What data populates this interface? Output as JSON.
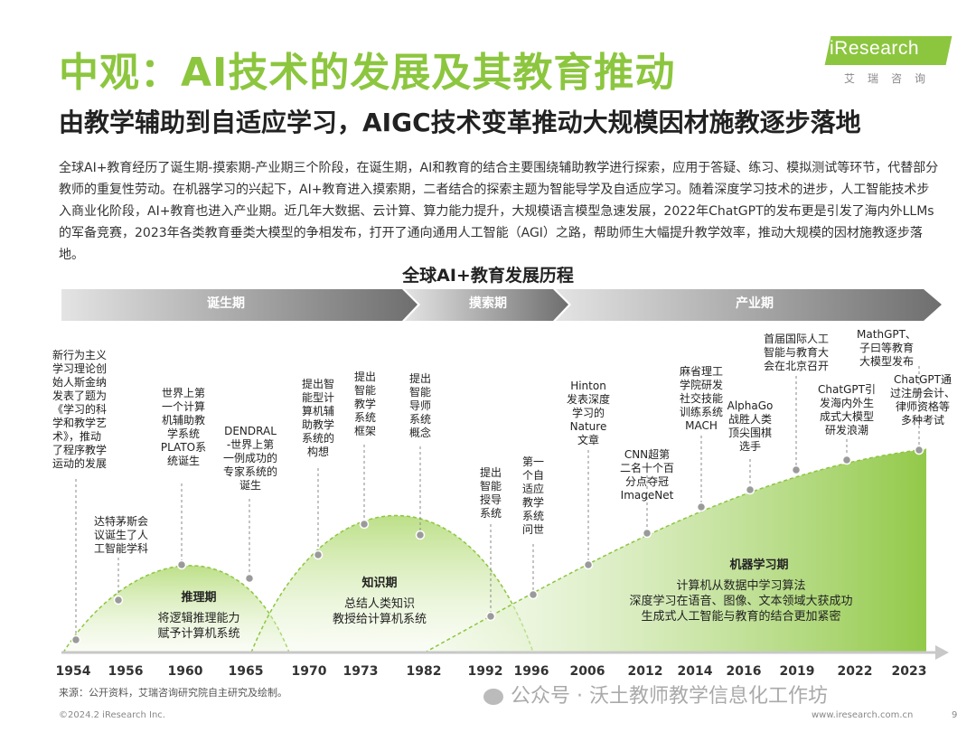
{
  "header": {
    "title": "中观：AI技术的发展及其教育推动",
    "subtitle": "由教学辅助到自适应学习，AIGC技术变革推动大规模因材施教逐步落地"
  },
  "logo": {
    "name": "iResearch",
    "sub": "艾瑞咨询",
    "color": "#8cc63f"
  },
  "intro": "全球AI+教育经历了诞生期-摸索期-产业期三个阶段，在诞生期，AI和教育的结合主要围绕辅助教学进行探索，应用于答疑、练习、模拟测试等环节，代替部分教师的重复性劳动。在机器学习的兴起下，AI+教育进入摸索期，二者结合的探索主题为智能导学及自适应学习。随着深度学习技术的进步，人工智能技术步入商业化阶段，AI+教育也进入产业期。近几年大数据、云计算、算力能力提升，大规模语言模型急速发展，2022年ChatGPT的发布更是引发了海内外LLMs的军备竞赛，2023年各类教育垂类大模型的争相发布，打开了通向通用人工智能（AGI）之路，帮助师生大幅提升教学效率，推动大规模的因材施教逐步落地。",
  "diagram": {
    "title": "全球AI+教育发展历程",
    "phases": [
      "诞生期",
      "摸索期",
      "产业期"
    ],
    "periods": [
      {
        "name": "推理期",
        "desc": [
          "将逻辑推理能力",
          "赋予计算机系统"
        ]
      },
      {
        "name": "知识期",
        "desc": [
          "总结人类知识",
          "教授给计算机系统"
        ]
      },
      {
        "name": "机器学习期",
        "desc": [
          "计算机从数据中学习算法",
          "深度学习在语音、图像、文本领域大获成功",
          "生成式人工智能与教育的结合更加紧密"
        ]
      }
    ],
    "years": [
      "1954",
      "1956",
      "1960",
      "1965",
      "1970",
      "1973",
      "1982",
      "1992",
      "1996",
      "2006",
      "2012",
      "2014",
      "2016",
      "2019",
      "2022",
      "2023"
    ],
    "events": [
      [
        "新行为主义",
        "学习理论创",
        "始人斯金纳",
        "发表了题为",
        "《学习的科",
        "学和教学艺",
        "术》，推动",
        "了程序教学",
        "运动的发展"
      ],
      [
        "达特茅斯会",
        "议诞生了人",
        "工智能学科"
      ],
      [
        "世界上第",
        "一个计算",
        "机辅助教",
        "学系统",
        "PLATO系",
        "统诞生"
      ],
      [
        "DENDRAL",
        "-世界上第",
        "一例成功的",
        "专家系统的",
        "诞生"
      ],
      [
        "提出智",
        "能型计",
        "算机辅",
        "助教学",
        "系统的",
        "构想"
      ],
      [
        "提出",
        "智能",
        "教学",
        "系统",
        "框架"
      ],
      [
        "提出",
        "智能",
        "导师",
        "系统",
        "概念"
      ],
      [
        "提出",
        "智能",
        "授导",
        "系统"
      ],
      [
        "第一",
        "个自",
        "适应",
        "教学",
        "系统",
        "问世"
      ],
      [
        "Hinton",
        "发表深度",
        "学习的",
        "Nature",
        "文章"
      ],
      [
        "CNN超第",
        "二名十个百",
        "分点夺冠",
        "ImageNet"
      ],
      [
        "麻省理工",
        "学院研发",
        "社交技能",
        "训练系统",
        "MACH"
      ],
      [
        "AlphaGo",
        "战胜人类",
        "顶尖围棋",
        "选手"
      ],
      [
        "首届国际人工",
        "智能与教育大",
        "会在北京召开"
      ],
      [
        "ChatGPT引",
        "发海内外生",
        "成式大模型",
        "研发浪潮"
      ],
      [
        "MathGPT、",
        "子曰等教育",
        "大模型发布"
      ],
      [
        "ChatGPT通",
        "过注册会计、",
        "律师资格等",
        "多种考试"
      ]
    ]
  },
  "footer": {
    "source": "来源：公开资料，艾瑞咨询研究院自主研究及绘制。",
    "watermark": "公众号 · 沃土教师教学信息化工作坊",
    "copyright": "©2024.2 iResearch Inc.",
    "website": "www.iresearch.com.cn",
    "page": "9"
  }
}
